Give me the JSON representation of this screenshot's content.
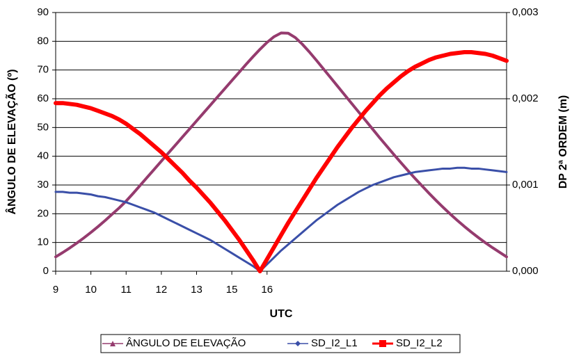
{
  "chart_data": {
    "type": "line",
    "xlabel": "UTC",
    "ylabel": "ÂNGULO DE ELEVAÇÃO (º)",
    "y2label": "DP 2ª ORDEM (m)",
    "categories": [
      "9",
      null,
      null,
      null,
      null,
      "10",
      null,
      null,
      null,
      null,
      "11",
      null,
      null,
      null,
      null,
      "12",
      null,
      null,
      null,
      null,
      "13",
      null,
      null,
      null,
      null,
      "15",
      null,
      null,
      null,
      null,
      "16",
      null,
      null,
      null,
      null,
      null,
      null,
      null,
      null,
      null,
      null,
      null,
      null,
      null,
      null,
      null,
      null,
      null,
      null,
      null,
      null,
      null,
      null,
      null,
      null,
      null,
      null,
      null,
      null,
      null,
      null,
      null,
      null,
      null,
      null
    ],
    "ylim": [
      0,
      90
    ],
    "yticks": [
      0,
      10,
      20,
      30,
      40,
      50,
      60,
      70,
      80,
      90
    ],
    "y2lim": [
      0,
      0.003
    ],
    "y2ticks": [
      {
        "value": 0,
        "label": "0,000"
      },
      {
        "value": 0.001,
        "label": "0,001"
      },
      {
        "value": 0.002,
        "label": "0,002"
      },
      {
        "value": 0.003,
        "label": "0,003"
      }
    ],
    "grid": true,
    "legend": "bottom",
    "series": [
      {
        "name": "ÂNGULO DE ELEVAÇÃO",
        "color": "#953b6e",
        "marker": "triangle",
        "values": [
          5,
          6.5,
          8.1,
          9.8,
          11.6,
          13.5,
          15.5,
          17.6,
          19.8,
          22.0,
          24.4,
          27.1,
          29.9,
          32.7,
          35.5,
          38.3,
          41.1,
          43.9,
          46.7,
          49.5,
          52.3,
          55.1,
          57.9,
          60.7,
          63.5,
          66.3,
          69.1,
          71.9,
          74.6,
          77.2,
          79.6,
          81.6,
          82.9,
          82.8,
          81.3,
          79.0,
          76.3,
          73.4,
          70.4,
          67.4,
          64.4,
          61.4,
          58.4,
          55.4,
          52.4,
          49.4,
          46.4,
          43.5,
          40.6,
          37.8,
          35.0,
          32.3,
          29.7,
          27.1,
          24.6,
          22.2,
          19.9,
          17.7,
          15.6,
          13.6,
          11.7,
          9.9,
          8.2,
          6.6,
          5.0
        ]
      },
      {
        "name": "SD_I2_L1",
        "color": "#3a4fa8",
        "marker": "diamond",
        "axis": "y2",
        "values": [
          0.00092,
          0.00092,
          0.00091,
          0.00091,
          0.0009,
          0.00089,
          0.00087,
          0.00086,
          0.00084,
          0.00082,
          0.0008,
          0.00077,
          0.00074,
          0.00071,
          0.00068,
          0.00064,
          0.0006,
          0.00056,
          0.00052,
          0.00048,
          0.00044,
          0.0004,
          0.00036,
          0.00031,
          0.00026,
          0.00021,
          0.00016,
          0.00011,
          6e-05,
          0,
          8e-05,
          0.00016,
          0.00024,
          0.00031,
          0.00038,
          0.00045,
          0.00052,
          0.00059,
          0.00065,
          0.00071,
          0.00077,
          0.00082,
          0.00087,
          0.00092,
          0.00096,
          0.001,
          0.00103,
          0.00106,
          0.00109,
          0.00111,
          0.00113,
          0.00115,
          0.00116,
          0.00117,
          0.00118,
          0.00119,
          0.00119,
          0.0012,
          0.0012,
          0.00119,
          0.00119,
          0.00118,
          0.00117,
          0.00116,
          0.00115
        ]
      },
      {
        "name": "SD_I2_L2",
        "color": "#ff0000",
        "marker": "square",
        "axis": "y2",
        "values": [
          0.00195,
          0.00195,
          0.00194,
          0.00193,
          0.00191,
          0.00189,
          0.00186,
          0.00183,
          0.0018,
          0.00176,
          0.00171,
          0.00165,
          0.00159,
          0.00152,
          0.00145,
          0.00138,
          0.0013,
          0.00122,
          0.00114,
          0.00105,
          0.00097,
          0.00088,
          0.00079,
          0.00069,
          0.00059,
          0.00048,
          0.00037,
          0.00025,
          0.00013,
          0,
          0.00014,
          0.00028,
          0.00042,
          0.00056,
          0.00069,
          0.00082,
          0.00095,
          0.00108,
          0.0012,
          0.00132,
          0.00144,
          0.00155,
          0.00166,
          0.00176,
          0.00186,
          0.00195,
          0.00204,
          0.00212,
          0.00219,
          0.00226,
          0.00232,
          0.00237,
          0.00241,
          0.00245,
          0.00248,
          0.0025,
          0.00252,
          0.00253,
          0.00254,
          0.00254,
          0.00253,
          0.00252,
          0.0025,
          0.00247,
          0.00244
        ]
      }
    ]
  }
}
